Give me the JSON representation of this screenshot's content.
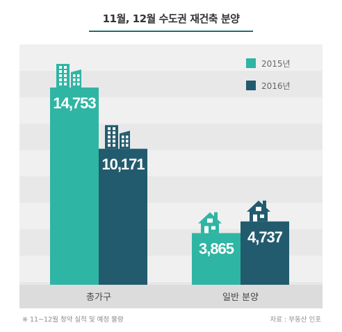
{
  "header": {
    "title": "11월, 12월 수도권 재건축 분양"
  },
  "footer": {
    "note": "※ 11~12월 청약 실적 및 예정 물량",
    "source": "자료 : 부동산 인포"
  },
  "colors": {
    "series_2015": "#2fb5a3",
    "series_2016": "#225b6e",
    "plot_bg": "#f0f0f0",
    "plot_band": "#e8e8e8",
    "floor": "#dcdcdc"
  },
  "chart_data": {
    "type": "bar",
    "categories": [
      "총가구",
      "일반 분양"
    ],
    "series": [
      {
        "name": "2015년",
        "values": [
          14753,
          3865
        ],
        "labels": [
          "14,753",
          "3,865"
        ]
      },
      {
        "name": "2016년",
        "values": [
          10171,
          4737
        ],
        "labels": [
          "10,171",
          "4,737"
        ]
      }
    ],
    "legend_position": "top-right",
    "grid": true,
    "icons": {
      "총가구": "apartment-building-icon",
      "일반 분양": "house-icon"
    }
  }
}
